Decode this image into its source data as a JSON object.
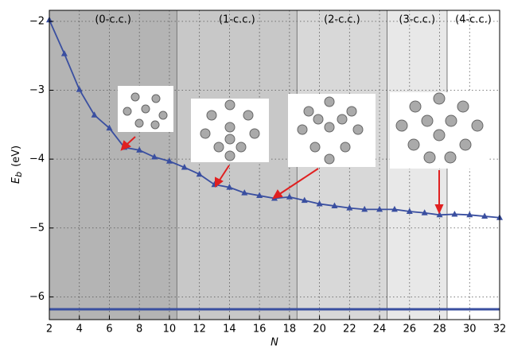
{
  "chart_data": {
    "type": "line",
    "xlabel": "N",
    "ylabel": {
      "main": "E",
      "sub": "b",
      "unit": "(eV)"
    },
    "x": [
      2,
      3,
      4,
      5,
      6,
      7,
      8,
      9,
      10,
      11,
      12,
      13,
      14,
      15,
      16,
      17,
      18,
      19,
      20,
      21,
      22,
      23,
      24,
      25,
      26,
      27,
      28,
      29,
      30,
      31,
      32
    ],
    "series": [
      {
        "color": "#3a4fa0",
        "marker": "triangle",
        "values": [
          -1.98,
          -2.47,
          -2.99,
          -3.36,
          -3.55,
          -3.83,
          -3.87,
          -3.97,
          -4.03,
          -4.12,
          -4.22,
          -4.37,
          -4.41,
          -4.49,
          -4.53,
          -4.57,
          -4.55,
          -4.6,
          -4.65,
          -4.68,
          -4.71,
          -4.73,
          -4.73,
          -4.73,
          -4.76,
          -4.78,
          -4.81,
          -4.8,
          -4.81,
          -4.83,
          -4.85
        ]
      }
    ],
    "reference_line": {
      "value": -6.18,
      "color": "#3a4fa0"
    },
    "regions": [
      {
        "label": "(0-c.c.)",
        "start": 2,
        "end": 10.5,
        "color": "#b4b4b4"
      },
      {
        "label": "(1-c.c.)",
        "start": 10.5,
        "end": 18.5,
        "color": "#c8c8c8"
      },
      {
        "label": "(2-c.c.)",
        "start": 18.5,
        "end": 24.5,
        "color": "#d8d8d8"
      },
      {
        "label": "(3-c.c.)",
        "start": 24.5,
        "end": 28.5,
        "color": "#e8e8e8"
      },
      {
        "label": "(4-c.c.)",
        "start": 28.5,
        "end": 32,
        "color": "#ffffff"
      }
    ],
    "xlim": [
      2,
      32
    ],
    "ylim": [
      -6.33,
      -1.84
    ],
    "xticks": [
      2,
      4,
      6,
      8,
      10,
      12,
      14,
      16,
      18,
      20,
      22,
      24,
      26,
      28,
      30,
      32
    ],
    "yticks": [
      {
        "value": -6,
        "label": "−6"
      },
      {
        "value": -5,
        "label": "−5"
      },
      {
        "value": -4,
        "label": "−4"
      },
      {
        "value": -3,
        "label": "−3"
      },
      {
        "value": -2,
        "label": "−2"
      }
    ],
    "grid": true
  }
}
